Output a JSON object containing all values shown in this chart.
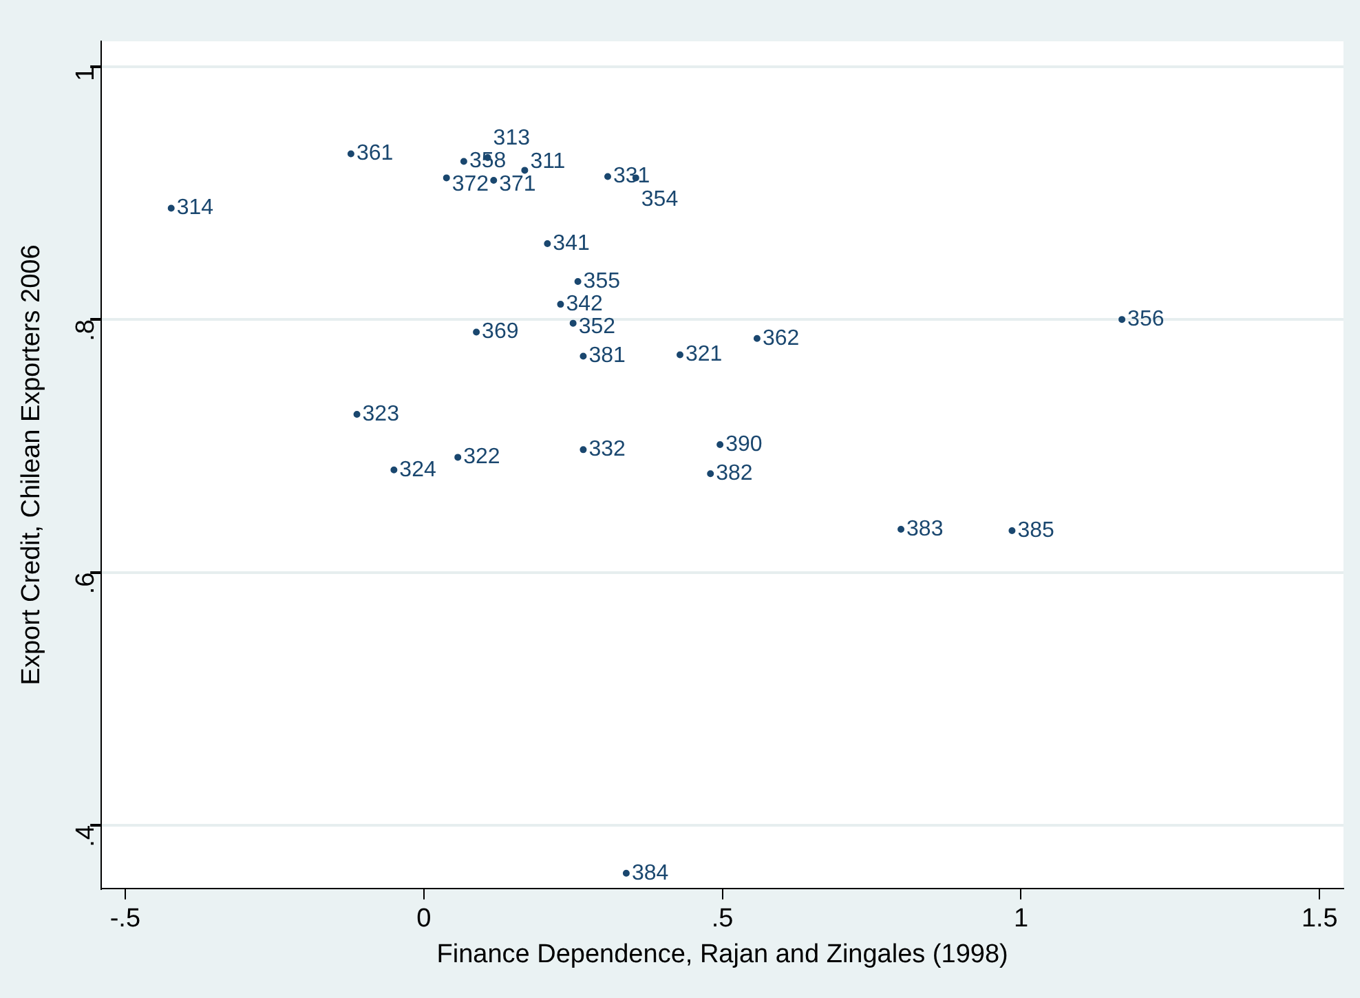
{
  "chart_data": {
    "type": "scatter",
    "xlabel": "Finance Dependence, Rajan and Zingales (1998)",
    "ylabel": "Export Credit, Chilean Exporters 2006",
    "x": [
      -0.423,
      -0.122,
      0.067,
      0.107,
      0.038,
      0.117,
      0.169,
      0.308,
      0.355,
      0.207,
      0.258,
      0.229,
      0.25,
      0.088,
      0.267,
      0.429,
      0.558,
      1.169,
      -0.112,
      -0.05,
      0.057,
      0.267,
      0.496,
      0.48,
      0.799,
      0.985,
      0.339
    ],
    "values": [
      0.888,
      0.931,
      0.925,
      0.928,
      0.912,
      0.91,
      0.918,
      0.913,
      0.912,
      0.86,
      0.83,
      0.812,
      0.797,
      0.79,
      0.771,
      0.772,
      0.785,
      0.8,
      0.725,
      0.681,
      0.691,
      0.697,
      0.701,
      0.678,
      0.634,
      0.633,
      0.362
    ],
    "annotations": [
      {
        "text": "314",
        "x": -0.423,
        "y": 0.888
      },
      {
        "text": "361",
        "x": -0.122,
        "y": 0.931
      },
      {
        "text": "358",
        "x": 0.067,
        "y": 0.925
      },
      {
        "text": "313",
        "x": 0.107,
        "y": 0.928
      },
      {
        "text": "372",
        "x": 0.038,
        "y": 0.912
      },
      {
        "text": "371",
        "x": 0.117,
        "y": 0.91
      },
      {
        "text": "311",
        "x": 0.169,
        "y": 0.918
      },
      {
        "text": "331",
        "x": 0.308,
        "y": 0.913
      },
      {
        "text": "354",
        "x": 0.355,
        "y": 0.912
      },
      {
        "text": "341",
        "x": 0.207,
        "y": 0.86
      },
      {
        "text": "355",
        "x": 0.258,
        "y": 0.83
      },
      {
        "text": "342",
        "x": 0.229,
        "y": 0.812
      },
      {
        "text": "352",
        "x": 0.25,
        "y": 0.797
      },
      {
        "text": "369",
        "x": 0.088,
        "y": 0.79
      },
      {
        "text": "381",
        "x": 0.267,
        "y": 0.771
      },
      {
        "text": "321",
        "x": 0.429,
        "y": 0.772
      },
      {
        "text": "362",
        "x": 0.558,
        "y": 0.785
      },
      {
        "text": "356",
        "x": 1.169,
        "y": 0.8
      },
      {
        "text": "323",
        "x": -0.112,
        "y": 0.725
      },
      {
        "text": "324",
        "x": -0.05,
        "y": 0.681
      },
      {
        "text": "322",
        "x": 0.057,
        "y": 0.691
      },
      {
        "text": "332",
        "x": 0.267,
        "y": 0.697
      },
      {
        "text": "390",
        "x": 0.496,
        "y": 0.701
      },
      {
        "text": "382",
        "x": 0.48,
        "y": 0.678
      },
      {
        "text": "383",
        "x": 0.799,
        "y": 0.634
      },
      {
        "text": "385",
        "x": 0.985,
        "y": 0.633
      },
      {
        "text": "384",
        "x": 0.339,
        "y": 0.362
      }
    ],
    "color": "#1a476f",
    "marker": "circle",
    "grid": "y",
    "legend": false,
    "xlim": [
      -0.54,
      1.54
    ],
    "ylim": [
      0.35,
      1.02
    ],
    "xticks": [
      {
        "value": -0.5,
        "label": "-.5"
      },
      0,
      {
        "value": 0.5,
        "label": ".5"
      },
      1,
      {
        "value": 1.5,
        "label": "1.5"
      }
    ],
    "yticks": [
      {
        "value": 0.4,
        "label": ".4"
      },
      {
        "value": 0.6,
        "label": ".6"
      },
      {
        "value": 0.8,
        "label": ".8"
      },
      1
    ]
  }
}
